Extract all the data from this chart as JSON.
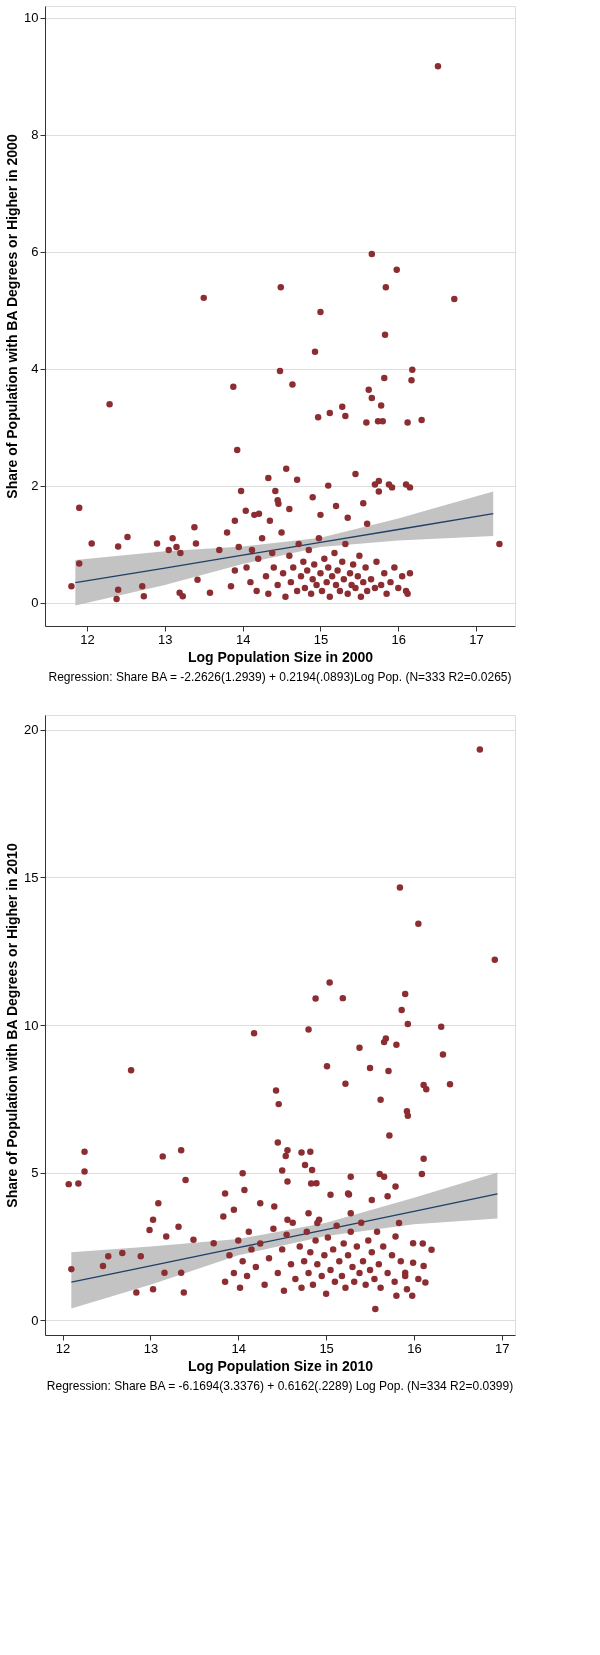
{
  "chart_data": [
    {
      "type": "scatter",
      "xlabel": "Log Population Size in 2000",
      "ylabel": "Share of Population with BA Degrees or Higher in 2000",
      "xlim": [
        11.46,
        17.5
      ],
      "xticks": [
        12,
        13,
        14,
        15,
        16,
        17
      ],
      "ylim": [
        -0.4,
        10.2
      ],
      "yticks": [
        0,
        2,
        4,
        6,
        8,
        10
      ],
      "grid": "y",
      "annotations": [
        "Regression: Share BA = -2.2626(1.2939) + 0.2194(.0893)Log Pop. (N=333 R2=0.0265)"
      ],
      "series": [
        {
          "type": "line",
          "line_style": "solid",
          "color": "#1f3f66",
          "x": [
            11.85,
            13,
            14,
            15,
            16,
            17.22
          ],
          "values": [
            0.34,
            0.59,
            0.81,
            1.03,
            1.25,
            1.52
          ],
          "lower": [
            -0.05,
            0.3,
            0.66,
            0.95,
            1.06,
            1.14
          ],
          "upper": [
            0.73,
            0.88,
            0.96,
            1.11,
            1.44,
            1.9
          ]
        },
        {
          "marker": "circle",
          "color": "#8c2d31",
          "x": [
            16.51,
            16.72,
            16.3,
            16.18,
            16.17,
            16.12,
            16.1,
            15.98,
            15.84,
            15.83,
            15.82,
            15.78,
            15.8,
            15.74,
            15.88,
            15.7,
            15.66,
            15.62,
            15.66,
            15.59,
            15.28,
            15.32,
            15.12,
            14.97,
            15.0,
            14.93,
            14.64,
            14.56,
            14.49,
            14.48,
            14.33,
            13.88,
            13.93,
            13.5,
            12.29,
            17.3,
            16.15,
            15.92,
            15.75,
            14.42,
            14.46,
            14.21,
            13.98,
            14.04,
            13.9,
            13.38,
            13.4,
            12.9,
            12.52,
            12.4,
            12.06,
            11.9,
            11.9,
            11.8,
            12.4,
            12.38,
            12.71,
            12.73,
            13.19,
            13.23,
            13.58,
            13.42,
            13.85,
            13.05,
            13.1,
            13.2,
            13.15,
            14.05,
            14.1,
            14.12,
            14.18,
            14.2,
            14.25,
            14.3,
            14.33,
            14.38,
            14.4,
            14.45,
            14.5,
            14.52,
            14.55,
            14.6,
            14.62,
            14.65,
            14.7,
            14.72,
            14.75,
            14.78,
            14.8,
            14.83,
            14.85,
            14.88,
            14.9,
            14.92,
            14.95,
            14.98,
            15.0,
            15.02,
            15.05,
            15.08,
            15.1,
            15.12,
            15.15,
            15.18,
            15.2,
            15.22,
            15.25,
            15.28,
            15.3,
            15.32,
            15.35,
            15.38,
            15.4,
            15.42,
            15.45,
            15.48,
            15.5,
            15.52,
            15.55,
            15.58,
            15.6,
            15.65,
            15.7,
            15.72,
            15.78,
            15.82,
            15.85,
            15.9,
            15.95,
            16.0,
            16.05,
            16.1,
            16.12,
            16.15,
            14.6,
            14.7,
            14.9,
            15.0,
            15.1,
            15.2,
            15.35,
            15.45,
            15.55,
            15.6,
            15.75,
            14.45,
            14.35,
            14.15,
            13.8,
            13.7,
            13.9,
            13.95
          ],
          "values": [
            9.17,
            5.19,
            3.12,
            3.98,
            3.8,
            3.08,
            2.02,
            5.69,
            5.39,
            4.58,
            3.84,
            3.37,
            3.1,
            3.1,
            2.02,
            2.02,
            5.96,
            3.64,
            3.5,
            3.08,
            3.35,
            3.19,
            3.24,
            3.17,
            4.97,
            4.29,
            3.73,
            2.29,
            5.39,
            3.96,
            2.13,
            3.69,
            2.61,
            5.21,
            3.39,
            1.0,
            1.97,
            1.97,
            2.08,
            1.91,
            1.69,
            1.52,
            1.91,
            1.57,
            1.4,
            1.29,
            1.01,
            1.01,
            1.12,
            0.96,
            1.01,
            1.62,
            0.67,
            0.28,
            0.22,
            0.06,
            0.28,
            0.11,
            0.17,
            0.11,
            0.17,
            0.39,
            0.28,
            0.9,
            1.1,
            0.85,
            0.95,
            0.6,
            0.35,
            0.9,
            0.2,
            0.75,
            1.1,
            0.45,
            0.15,
            0.85,
            0.6,
            0.3,
            1.2,
            0.5,
            0.1,
            0.8,
            0.35,
            0.6,
            0.2,
            1.0,
            0.45,
            0.7,
            0.25,
            0.55,
            0.9,
            0.15,
            0.4,
            0.65,
            0.3,
            1.1,
            0.5,
            0.2,
            0.75,
            0.35,
            0.6,
            0.1,
            0.45,
            0.85,
            0.3,
            0.55,
            0.2,
            0.7,
            0.4,
            1.0,
            0.15,
            0.5,
            0.3,
            0.65,
            0.25,
            0.45,
            0.8,
            0.1,
            0.35,
            0.6,
            0.2,
            0.4,
            0.25,
            0.7,
            0.3,
            0.5,
            0.15,
            0.35,
            0.6,
            0.25,
            0.45,
            0.2,
            0.15,
            0.5,
            1.6,
            2.1,
            1.8,
            1.5,
            2.0,
            1.65,
            1.45,
            2.2,
            1.7,
            1.35,
            1.9,
            1.75,
            1.4,
            1.5,
            1.2,
            0.9,
            0.55,
            0.95
          ]
        }
      ]
    },
    {
      "type": "scatter",
      "xlabel": "Log Population Size in 2010",
      "ylabel": "Share of Population with BA Degrees or Higher in 2010",
      "xlim": [
        11.8,
        17.15
      ],
      "xticks": [
        12,
        13,
        14,
        15,
        16,
        17
      ],
      "ylim": [
        -0.5,
        20.5
      ],
      "yticks": [
        0,
        5,
        10,
        15,
        20
      ],
      "grid": "y",
      "annotations": [
        "Regression: Share BA = -6.1694(3.3376) + 0.6162(.2289) Log Pop. (N=334 R2=0.0399)"
      ],
      "series": [
        {
          "type": "line",
          "line_style": "solid",
          "color": "#1f3f66",
          "x": [
            12.1,
            13,
            14,
            15,
            16,
            16.95
          ],
          "values": [
            1.29,
            1.84,
            2.46,
            3.07,
            3.69,
            4.28
          ],
          "lower": [
            0.4,
            1.2,
            2.2,
            2.85,
            3.25,
            3.45
          ],
          "upper": [
            2.3,
            2.5,
            2.75,
            3.3,
            4.15,
            5.0
          ]
        },
        {
          "marker": "circle",
          "color": "#8c2d31",
          "x": [
            16.75,
            16.92,
            16.41,
            16.31,
            16.33,
            16.05,
            15.84,
            16.11,
            16.14,
            16.11,
            16.09,
            15.9,
            15.86,
            15.93,
            15.92,
            15.93,
            15.8,
            15.68,
            15.66,
            15.71,
            15.72,
            15.79,
            15.7,
            15.66,
            15.61,
            15.62,
            15.5,
            15.38,
            15.28,
            15.26,
            15.22,
            15.19,
            15.04,
            15.01,
            14.88,
            14.8,
            15.05,
            14.89,
            14.82,
            14.84,
            14.76,
            14.72,
            14.56,
            14.54,
            14.56,
            14.5,
            14.43,
            14.46,
            14.45,
            14.18,
            14.05,
            14.07,
            13.85,
            13.4,
            13.35,
            13.14,
            12.78,
            12.25,
            12.25,
            12.07,
            16.2,
            16.11,
            16.13,
            15.99,
            15.99,
            15.98,
            15.9,
            15.92,
            15.79,
            15.83,
            15.8,
            15.56,
            15.52,
            15.28,
            15.25,
            14.83,
            14.8,
            14.9,
            14.56,
            14.41,
            14.25,
            13.95,
            13.83,
            13.72,
            13.49,
            13.32,
            13.18,
            13.09,
            13.03,
            12.99,
            12.89,
            12.84,
            13.03,
            13.16,
            13.35,
            13.38,
            12.68,
            12.52,
            12.46,
            12.18,
            12.1,
            13.85,
            13.9,
            13.95,
            14.0,
            14.02,
            14.05,
            14.1,
            14.12,
            14.15,
            14.2,
            14.25,
            14.3,
            14.35,
            14.4,
            14.45,
            14.5,
            14.52,
            14.55,
            14.6,
            14.62,
            14.65,
            14.7,
            14.72,
            14.75,
            14.78,
            14.8,
            14.82,
            14.85,
            14.88,
            14.9,
            14.92,
            14.95,
            14.98,
            15.0,
            15.02,
            15.05,
            15.08,
            15.1,
            15.12,
            15.15,
            15.18,
            15.2,
            15.22,
            15.25,
            15.28,
            15.3,
            15.32,
            15.35,
            15.38,
            15.4,
            15.42,
            15.45,
            15.48,
            15.5,
            15.52,
            15.55,
            15.58,
            15.6,
            15.62,
            15.65,
            15.7,
            15.75,
            15.78,
            15.85,
            15.9,
            16.05,
            16.1
          ],
          "values": [
            19.33,
            12.21,
            7.99,
            9.94,
            9.0,
            13.43,
            14.66,
            7.97,
            7.82,
            5.47,
            4.95,
            11.05,
            10.51,
            10.03,
            7.08,
            6.93,
            9.33,
            9.54,
            9.42,
            8.44,
            6.26,
            4.53,
            4.2,
            4.86,
            4.95,
            7.47,
            8.54,
            9.23,
            4.86,
            4.26,
            8.01,
            10.91,
            11.44,
            8.6,
            10.9,
            9.85,
            4.25,
            4.64,
            5.71,
            5.09,
            5.26,
            5.68,
            5.76,
            5.56,
            4.7,
            5.07,
            7.78,
            7.32,
            6.02,
            9.72,
            4.98,
            4.41,
            4.29,
            4.75,
            5.76,
            5.55,
            8.47,
            5.71,
            5.04,
            4.61,
            2.39,
            1.84,
            1.28,
            2.61,
            1.95,
            0.83,
            1.61,
            1.05,
            2.84,
            3.29,
            0.83,
            0.38,
            4.07,
            3.62,
            4.29,
            4.63,
            3.62,
            3.29,
            3.4,
            3.85,
            3.96,
            3.74,
            3.51,
            2.61,
            2.73,
            3.17,
            2.84,
            3.96,
            3.4,
            3.06,
            2.17,
            0.94,
            1.05,
            1.61,
            1.61,
            0.94,
            2.28,
            2.17,
            1.84,
            4.63,
            1.73,
            1.3,
            2.2,
            1.6,
            2.7,
            1.1,
            2.0,
            1.5,
            3.0,
            2.4,
            1.8,
            2.6,
            1.2,
            2.1,
            3.1,
            1.6,
            2.4,
            1.0,
            2.9,
            1.9,
            3.3,
            1.4,
            2.5,
            1.1,
            2.0,
            3.0,
            1.6,
            2.3,
            1.2,
            2.7,
            1.9,
            3.4,
            1.5,
            2.2,
            0.9,
            2.8,
            1.7,
            2.4,
            1.3,
            3.2,
            2.0,
            1.5,
            2.6,
            1.1,
            2.2,
            3.0,
            1.8,
            1.3,
            2.5,
            1.6,
            3.3,
            2.0,
            1.2,
            2.7,
            1.7,
            2.3,
            1.4,
            3.0,
            1.9,
            1.1,
            2.5,
            1.6,
            2.2,
            1.3,
            2.0,
            1.5,
            1.4,
            2.6
          ]
        }
      ]
    }
  ]
}
